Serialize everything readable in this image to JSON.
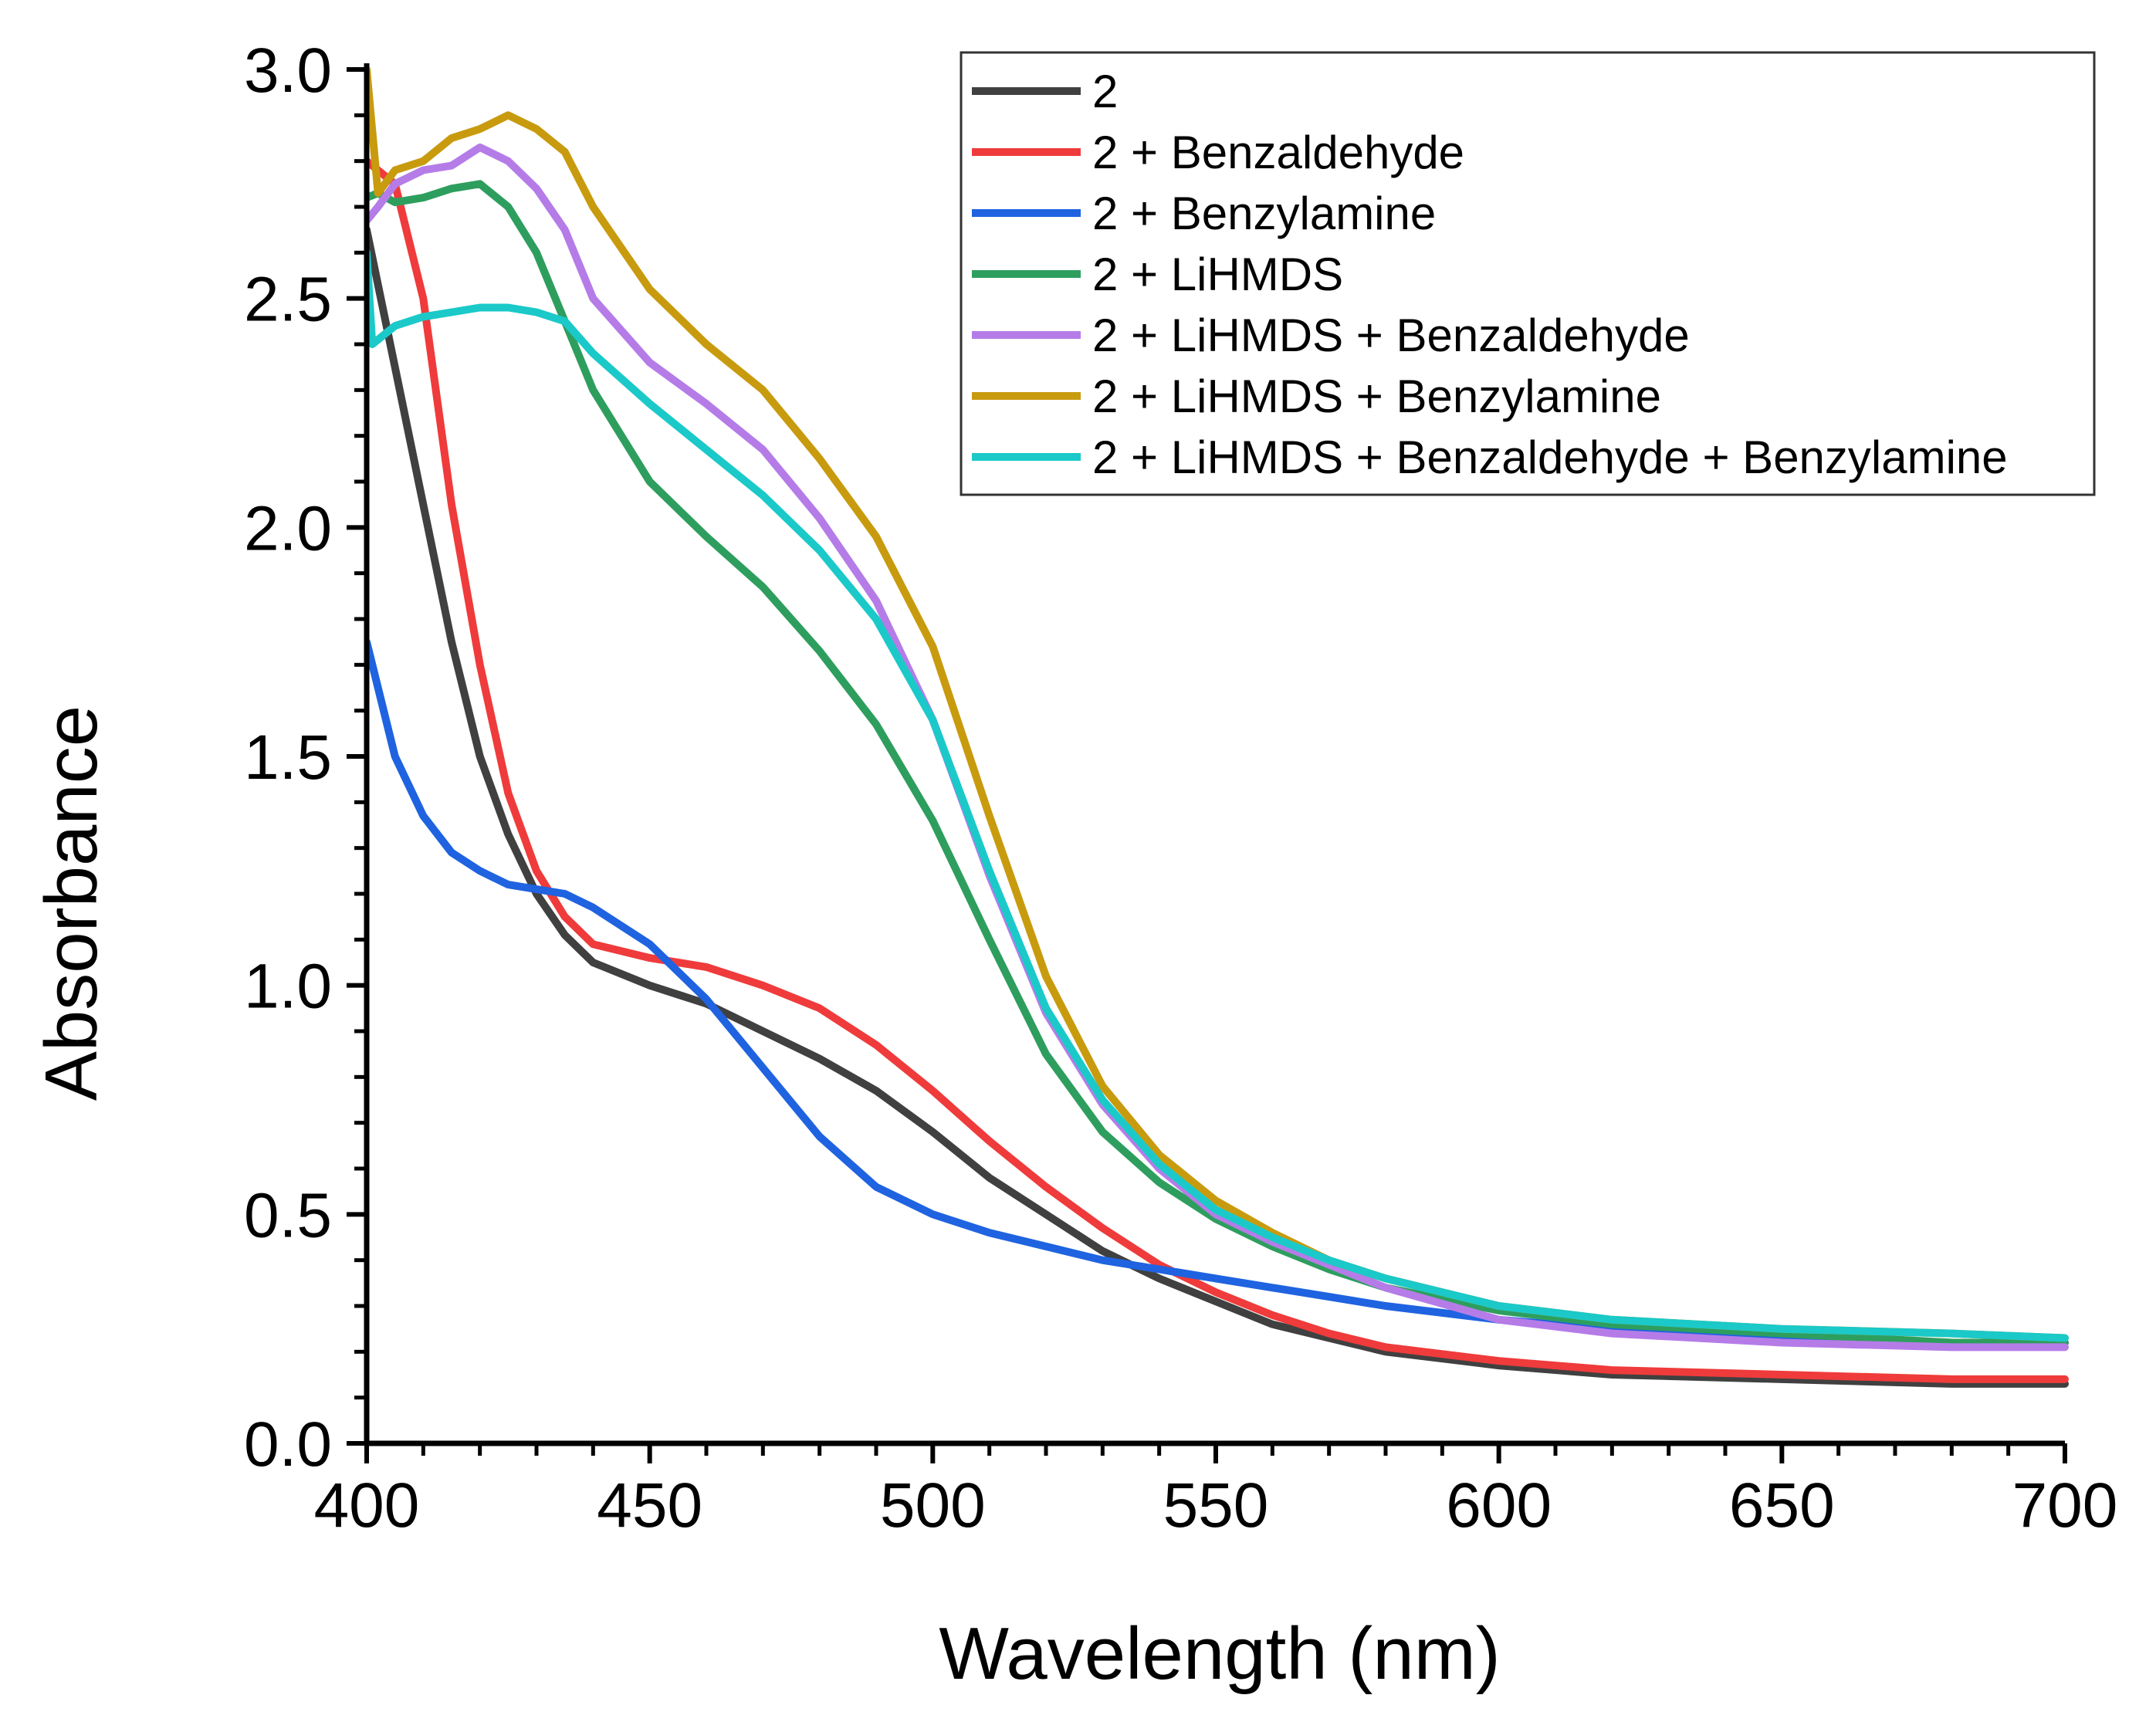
{
  "chart_data": {
    "type": "line",
    "title": "",
    "xlabel": "Wavelength (nm)",
    "ylabel": "Absorbance",
    "xlim": [
      400,
      700
    ],
    "ylim": [
      0.0,
      3.0
    ],
    "xticks": [
      400,
      450,
      500,
      550,
      600,
      650,
      700
    ],
    "xtick_labels": [
      "400",
      "450",
      "500",
      "550",
      "600",
      "650",
      "700"
    ],
    "yticks": [
      0.0,
      0.5,
      1.0,
      1.5,
      2.0,
      2.5,
      3.0
    ],
    "ytick_labels": [
      "0.0",
      "0.5",
      "1.0",
      "1.5",
      "2.0",
      "2.5",
      "3.0"
    ],
    "grid": false,
    "legend_position": "top-right",
    "series": [
      {
        "name": "2",
        "color": "#404040",
        "x": [
          400,
          405,
          410,
          415,
          420,
          425,
          430,
          435,
          440,
          450,
          460,
          470,
          480,
          490,
          500,
          510,
          520,
          530,
          540,
          550,
          560,
          570,
          580,
          600,
          620,
          650,
          680,
          700
        ],
        "y": [
          2.65,
          2.35,
          2.05,
          1.75,
          1.5,
          1.33,
          1.2,
          1.11,
          1.05,
          1.0,
          0.96,
          0.9,
          0.84,
          0.77,
          0.68,
          0.58,
          0.5,
          0.42,
          0.36,
          0.31,
          0.26,
          0.23,
          0.2,
          0.17,
          0.15,
          0.14,
          0.13,
          0.13
        ]
      },
      {
        "name": "2 + Benzaldehyde",
        "color": "#ef3b3b",
        "x": [
          400,
          405,
          410,
          415,
          420,
          425,
          430,
          435,
          440,
          450,
          460,
          470,
          480,
          490,
          500,
          510,
          520,
          530,
          540,
          550,
          560,
          570,
          580,
          600,
          620,
          650,
          680,
          700
        ],
        "y": [
          2.8,
          2.75,
          2.5,
          2.05,
          1.7,
          1.42,
          1.25,
          1.15,
          1.09,
          1.06,
          1.04,
          1.0,
          0.95,
          0.87,
          0.77,
          0.66,
          0.56,
          0.47,
          0.39,
          0.33,
          0.28,
          0.24,
          0.21,
          0.18,
          0.16,
          0.15,
          0.14,
          0.14
        ]
      },
      {
        "name": "2 + Benzylamine",
        "color": "#1f63e0",
        "x": [
          400,
          405,
          410,
          415,
          420,
          425,
          430,
          435,
          440,
          450,
          460,
          470,
          480,
          490,
          500,
          510,
          520,
          530,
          540,
          550,
          560,
          570,
          580,
          600,
          620,
          650,
          680,
          700
        ],
        "y": [
          1.75,
          1.5,
          1.37,
          1.29,
          1.25,
          1.22,
          1.21,
          1.2,
          1.17,
          1.09,
          0.97,
          0.82,
          0.67,
          0.56,
          0.5,
          0.46,
          0.43,
          0.4,
          0.38,
          0.36,
          0.34,
          0.32,
          0.3,
          0.27,
          0.25,
          0.23,
          0.22,
          0.22
        ]
      },
      {
        "name": "2 + LiHMDS",
        "color": "#2e9e5e",
        "x": [
          400,
          402,
          405,
          410,
          415,
          420,
          425,
          430,
          435,
          440,
          450,
          460,
          470,
          480,
          490,
          500,
          510,
          520,
          530,
          540,
          550,
          560,
          570,
          580,
          600,
          620,
          650,
          680,
          700
        ],
        "y": [
          2.72,
          2.73,
          2.71,
          2.72,
          2.74,
          2.75,
          2.7,
          2.6,
          2.45,
          2.3,
          2.1,
          1.98,
          1.87,
          1.73,
          1.57,
          1.36,
          1.1,
          0.85,
          0.68,
          0.57,
          0.49,
          0.43,
          0.38,
          0.34,
          0.29,
          0.26,
          0.24,
          0.22,
          0.22
        ]
      },
      {
        "name": "2 + LiHMDS + Benzaldehyde",
        "color": "#b57ce8",
        "x": [
          400,
          402,
          405,
          410,
          415,
          420,
          425,
          430,
          435,
          440,
          450,
          460,
          470,
          480,
          490,
          500,
          510,
          520,
          530,
          540,
          550,
          560,
          570,
          580,
          600,
          620,
          650,
          680,
          700
        ],
        "y": [
          2.67,
          2.7,
          2.75,
          2.78,
          2.79,
          2.83,
          2.8,
          2.74,
          2.65,
          2.5,
          2.36,
          2.27,
          2.17,
          2.02,
          1.84,
          1.58,
          1.24,
          0.94,
          0.74,
          0.6,
          0.5,
          0.44,
          0.39,
          0.34,
          0.27,
          0.24,
          0.22,
          0.21,
          0.21
        ]
      },
      {
        "name": "2 + LiHMDS + Benzylamine",
        "color": "#c89b0f",
        "x": [
          400,
          402,
          405,
          410,
          415,
          420,
          425,
          430,
          435,
          440,
          450,
          460,
          470,
          480,
          490,
          500,
          510,
          520,
          530,
          540,
          550,
          560,
          570,
          580,
          600,
          620,
          650,
          680,
          700
        ],
        "y": [
          3.0,
          2.73,
          2.78,
          2.8,
          2.85,
          2.87,
          2.9,
          2.87,
          2.82,
          2.7,
          2.52,
          2.4,
          2.3,
          2.15,
          1.98,
          1.74,
          1.37,
          1.02,
          0.78,
          0.63,
          0.53,
          0.46,
          0.4,
          0.36,
          0.3,
          0.27,
          0.25,
          0.24,
          0.23
        ]
      },
      {
        "name": "2 + LiHMDS + Benzaldehyde + Benzylamine",
        "color": "#1bc9c9",
        "x": [
          400,
          401,
          403,
          405,
          410,
          415,
          420,
          425,
          430,
          435,
          440,
          450,
          460,
          470,
          480,
          490,
          500,
          510,
          520,
          530,
          540,
          550,
          560,
          570,
          580,
          600,
          620,
          650,
          680,
          700
        ],
        "y": [
          2.6,
          2.4,
          2.42,
          2.44,
          2.46,
          2.47,
          2.48,
          2.48,
          2.47,
          2.45,
          2.38,
          2.27,
          2.17,
          2.07,
          1.95,
          1.8,
          1.58,
          1.25,
          0.95,
          0.75,
          0.61,
          0.51,
          0.45,
          0.4,
          0.36,
          0.3,
          0.27,
          0.25,
          0.24,
          0.23
        ]
      }
    ]
  }
}
